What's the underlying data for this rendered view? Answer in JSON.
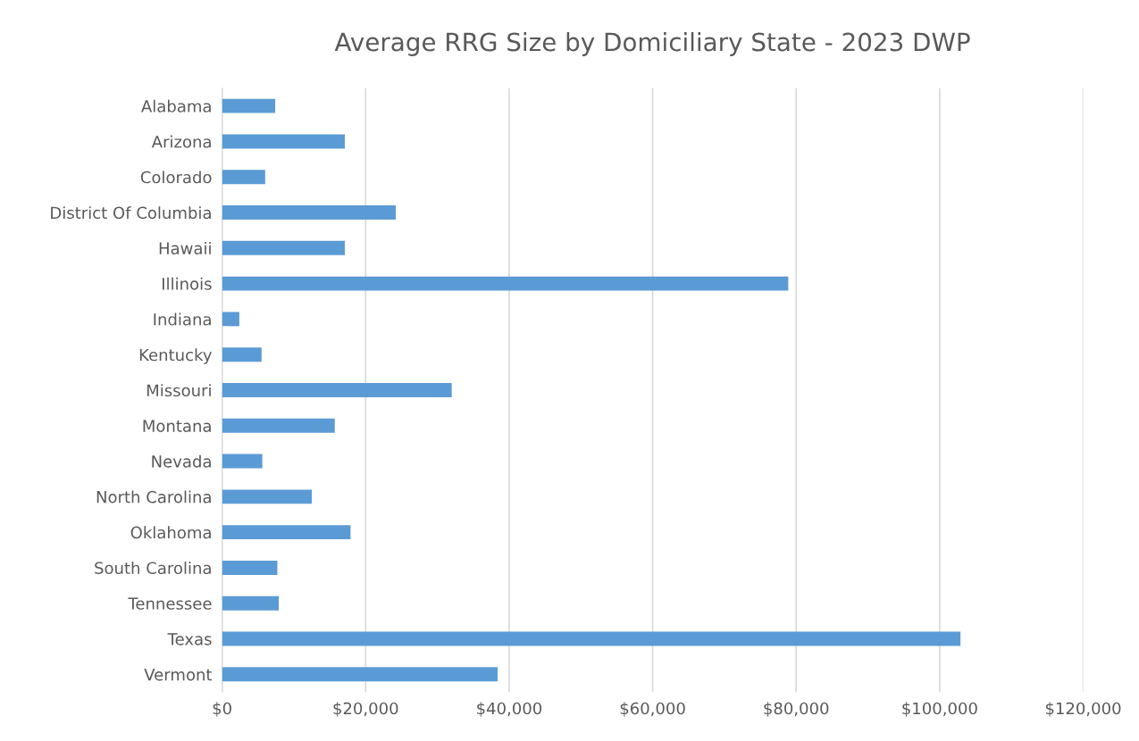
{
  "chart_data": {
    "type": "bar",
    "orientation": "horizontal",
    "title": "Average RRG Size by Domiciliary State - 2023 DWP",
    "categories": [
      "Alabama",
      "Arizona",
      "Colorado",
      "District Of Columbia",
      "Hawaii",
      "Illinois",
      "Indiana",
      "Kentucky",
      "Missouri",
      "Montana",
      "Nevada",
      "North Carolina",
      "Oklahoma",
      "South Carolina",
      "Tennessee",
      "Texas",
      "Vermont"
    ],
    "values": [
      7400,
      17100,
      6000,
      24200,
      17100,
      78900,
      2400,
      5500,
      32000,
      15700,
      5600,
      12500,
      17900,
      7700,
      7900,
      102900,
      38400
    ],
    "color": "#5b9bd5",
    "xlim": [
      0,
      120000
    ],
    "xticks": [
      {
        "value": 0,
        "label": "$0"
      },
      {
        "value": 20000,
        "label": "$20,000"
      },
      {
        "value": 40000,
        "label": "$40,000"
      },
      {
        "value": 60000,
        "label": "$60,000"
      },
      {
        "value": 80000,
        "label": "$80,000"
      },
      {
        "value": 100000,
        "label": "$100,000"
      },
      {
        "value": 120000,
        "label": "$120,000"
      }
    ],
    "grid": "x",
    "legend": false
  }
}
